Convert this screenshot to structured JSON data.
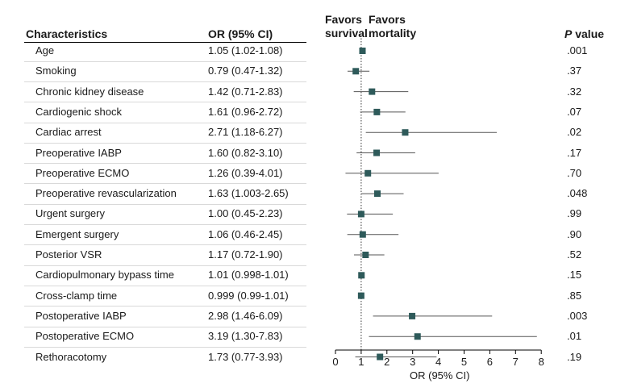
{
  "header": {
    "characteristics": "Characteristics",
    "or_ci": "OR (95% CI)",
    "p_italic": "P",
    "p_rest": " value",
    "favors_survival": [
      "Favors",
      "survival"
    ],
    "favors_mortality": [
      "Favors",
      "mortality"
    ]
  },
  "chart_data": {
    "type": "forest",
    "xlabel": "OR (95% CI)",
    "xlim": [
      0,
      8
    ],
    "xticks": [
      0,
      1,
      2,
      3,
      4,
      5,
      6,
      7,
      8
    ],
    "reference_line": 1,
    "marker_color": "#2e5a5a",
    "rows": [
      {
        "label": "Age",
        "or_text": "1.05 (1.02-1.08)",
        "or": 1.05,
        "lo": 1.02,
        "hi": 1.08,
        "p": ".001"
      },
      {
        "label": "Smoking",
        "or_text": "0.79 (0.47-1.32)",
        "or": 0.79,
        "lo": 0.47,
        "hi": 1.32,
        "p": ".37"
      },
      {
        "label": "Chronic kidney disease",
        "or_text": "1.42 (0.71-2.83)",
        "or": 1.42,
        "lo": 0.71,
        "hi": 2.83,
        "p": ".32"
      },
      {
        "label": "Cardiogenic shock",
        "or_text": "1.61 (0.96-2.72)",
        "or": 1.61,
        "lo": 0.96,
        "hi": 2.72,
        "p": ".07"
      },
      {
        "label": "Cardiac arrest",
        "or_text": "2.71 (1.18-6.27)",
        "or": 2.71,
        "lo": 1.18,
        "hi": 6.27,
        "p": ".02"
      },
      {
        "label": "Preoperative IABP",
        "or_text": "1.60 (0.82-3.10)",
        "or": 1.6,
        "lo": 0.82,
        "hi": 3.1,
        "p": ".17"
      },
      {
        "label": "Preoperative ECMO",
        "or_text": "1.26 (0.39-4.01)",
        "or": 1.26,
        "lo": 0.39,
        "hi": 4.01,
        "p": ".70"
      },
      {
        "label": "Preoperative revascularization",
        "or_text": "1.63 (1.003-2.65)",
        "or": 1.63,
        "lo": 1.003,
        "hi": 2.65,
        "p": ".048"
      },
      {
        "label": "Urgent surgery",
        "or_text": "1.00 (0.45-2.23)",
        "or": 1.0,
        "lo": 0.45,
        "hi": 2.23,
        "p": ".99"
      },
      {
        "label": "Emergent surgery",
        "or_text": "1.06 (0.46-2.45)",
        "or": 1.06,
        "lo": 0.46,
        "hi": 2.45,
        "p": ".90"
      },
      {
        "label": "Posterior VSR",
        "or_text": "1.17 (0.72-1.90)",
        "or": 1.17,
        "lo": 0.72,
        "hi": 1.9,
        "p": ".52"
      },
      {
        "label": "Cardiopulmonary bypass time",
        "or_text": "1.01 (0.998-1.01)",
        "or": 1.01,
        "lo": 0.998,
        "hi": 1.01,
        "p": ".15"
      },
      {
        "label": "Cross-clamp time",
        "or_text": "0.999 (0.99-1.01)",
        "or": 0.999,
        "lo": 0.99,
        "hi": 1.01,
        "p": ".85"
      },
      {
        "label": "Postoperative IABP",
        "or_text": "2.98 (1.46-6.09)",
        "or": 2.98,
        "lo": 1.46,
        "hi": 6.09,
        "p": ".003"
      },
      {
        "label": "Postoperative ECMO",
        "or_text": "3.19 (1.30-7.83)",
        "or": 3.19,
        "lo": 1.3,
        "hi": 7.83,
        "p": ".01"
      },
      {
        "label": "Rethoracotomy",
        "or_text": "1.73 (0.77-3.93)",
        "or": 1.73,
        "lo": 0.77,
        "hi": 3.93,
        "p": ".19"
      }
    ]
  }
}
